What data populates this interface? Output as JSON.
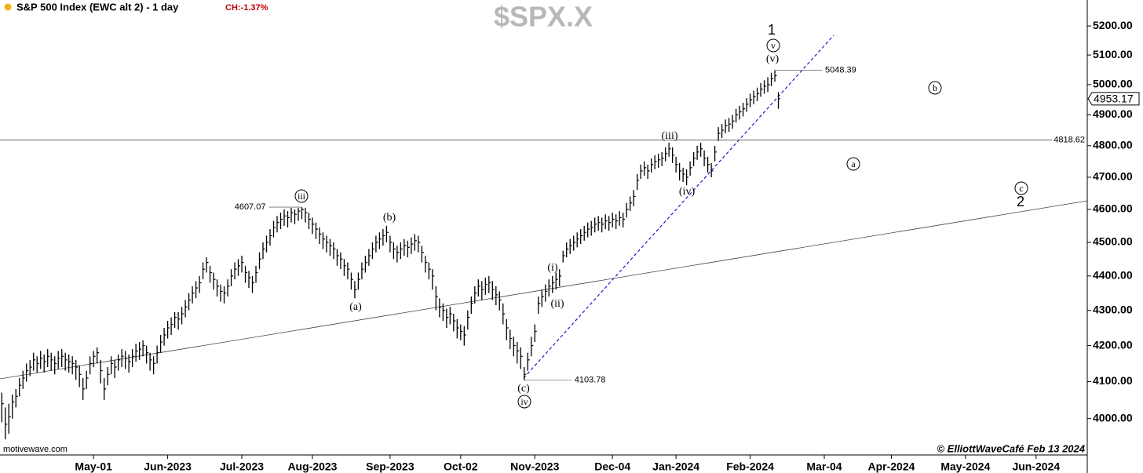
{
  "chart_data": {
    "type": "ohlc",
    "title": "S&P 500 Index (EWC alt 2) - 1 day",
    "change_label": "CH:-1.37%",
    "watermark": "$SPX.X",
    "source": "motivewave.com",
    "credit": "© ElliottWaveCafé Feb 13 2024",
    "ylog": true,
    "ylim": [
      3904,
      5291
    ],
    "yticks": [
      {
        "value": 4000,
        "label": "4000.00"
      },
      {
        "value": 4100,
        "label": "4100.00"
      },
      {
        "value": 4200,
        "label": "4200.00"
      },
      {
        "value": 4300,
        "label": "4300.00"
      },
      {
        "value": 4400,
        "label": "4400.00"
      },
      {
        "value": 4500,
        "label": "4500.00"
      },
      {
        "value": 4600,
        "label": "4600.00"
      },
      {
        "value": 4700,
        "label": "4700.00"
      },
      {
        "value": 4800,
        "label": "4800.00"
      },
      {
        "value": 4900,
        "label": "4900.00"
      },
      {
        "value": 5000,
        "label": "5000.00"
      },
      {
        "value": 5100,
        "label": "5100.00"
      },
      {
        "value": 5200,
        "label": "5200.00"
      }
    ],
    "xlim": [
      -0.5,
      307.5
    ],
    "xticks": [
      {
        "value": 26,
        "label": "May-01"
      },
      {
        "value": 47,
        "label": "Jun-2023"
      },
      {
        "value": 68,
        "label": "Jul-2023"
      },
      {
        "value": 88,
        "label": "Aug-2023"
      },
      {
        "value": 110,
        "label": "Sep-2023"
      },
      {
        "value": 130,
        "label": "Oct-02"
      },
      {
        "value": 151,
        "label": "Nov-2023"
      },
      {
        "value": 173,
        "label": "Dec-04"
      },
      {
        "value": 191,
        "label": "Jan-2024"
      },
      {
        "value": 212,
        "label": "Feb-2024"
      },
      {
        "value": 233,
        "label": "Mar-04"
      },
      {
        "value": 252,
        "label": "Apr-2024"
      },
      {
        "value": 273,
        "label": "May-2024"
      },
      {
        "value": 293,
        "label": "Jun-2024"
      }
    ],
    "color": "#000000",
    "x": [
      0,
      1,
      2,
      3,
      4,
      5,
      6,
      7,
      8,
      9,
      10,
      11,
      12,
      13,
      14,
      15,
      16,
      17,
      18,
      19,
      20,
      21,
      22,
      23,
      24,
      25,
      26,
      27,
      28,
      29,
      30,
      31,
      32,
      33,
      34,
      35,
      36,
      37,
      38,
      39,
      40,
      41,
      42,
      43,
      44,
      45,
      46,
      47,
      48,
      49,
      50,
      51,
      52,
      53,
      54,
      55,
      56,
      57,
      58,
      59,
      60,
      61,
      62,
      63,
      64,
      65,
      66,
      67,
      68,
      69,
      70,
      71,
      72,
      73,
      74,
      75,
      76,
      77,
      78,
      79,
      80,
      81,
      82,
      83,
      84,
      85,
      86,
      87,
      88,
      89,
      90,
      91,
      92,
      93,
      94,
      95,
      96,
      97,
      98,
      99,
      100,
      101,
      102,
      103,
      104,
      105,
      106,
      107,
      108,
      109,
      110,
      111,
      112,
      113,
      114,
      115,
      116,
      117,
      118,
      119,
      120,
      121,
      122,
      123,
      124,
      125,
      126,
      127,
      128,
      129,
      130,
      131,
      132,
      133,
      134,
      135,
      136,
      137,
      138,
      139,
      140,
      141,
      142,
      143,
      144,
      145,
      146,
      147,
      148,
      149,
      150,
      151,
      152,
      153,
      154,
      155,
      156,
      157,
      158,
      159,
      160,
      161,
      162,
      163,
      164,
      165,
      166,
      167,
      168,
      169,
      170,
      171,
      172,
      173,
      174,
      175,
      176,
      177,
      178,
      179,
      180,
      181,
      182,
      183,
      184,
      185,
      186,
      187,
      188,
      189,
      190,
      191,
      192,
      193,
      194,
      195,
      196,
      197,
      198,
      199,
      200,
      201,
      202,
      203,
      204,
      205,
      206,
      207,
      208,
      209,
      210,
      211,
      212,
      213,
      214,
      215,
      216,
      217,
      218,
      219,
      220
    ],
    "high": [
      4070,
      4030,
      4040,
      4065,
      4080,
      4110,
      4130,
      4150,
      4160,
      4180,
      4170,
      4185,
      4175,
      4190,
      4180,
      4170,
      4185,
      4190,
      4180,
      4175,
      4170,
      4160,
      4145,
      4110,
      4130,
      4170,
      4185,
      4195,
      4160,
      4110,
      4140,
      4170,
      4160,
      4175,
      4190,
      4185,
      4175,
      4190,
      4205,
      4210,
      4215,
      4200,
      4180,
      4170,
      4200,
      4230,
      4250,
      4270,
      4280,
      4295,
      4295,
      4310,
      4330,
      4350,
      4370,
      4385,
      4400,
      4440,
      4455,
      4430,
      4410,
      4390,
      4375,
      4370,
      4390,
      4420,
      4440,
      4450,
      4460,
      4430,
      4415,
      4400,
      4430,
      4470,
      4500,
      4520,
      4540,
      4565,
      4580,
      4590,
      4600,
      4595,
      4605,
      4600,
      4605,
      4607.07,
      4605,
      4590,
      4575,
      4560,
      4545,
      4530,
      4520,
      4510,
      4500,
      4480,
      4470,
      4450,
      4440,
      4410,
      4385,
      4410,
      4440,
      4460,
      4480,
      4500,
      4520,
      4530,
      4540,
      4550,
      4520,
      4500,
      4490,
      4500,
      4510,
      4505,
      4515,
      4525,
      4520,
      4490,
      4460,
      4440,
      4420,
      4370,
      4335,
      4320,
      4305,
      4310,
      4290,
      4275,
      4260,
      4255,
      4300,
      4340,
      4370,
      4390,
      4385,
      4395,
      4400,
      4385,
      4370,
      4355,
      4320,
      4275,
      4245,
      4225,
      4210,
      4195,
      4140,
      4180,
      4225,
      4260,
      4340,
      4360,
      4375,
      4390,
      4400,
      4410,
      4420,
      4475,
      4500,
      4510,
      4520,
      4530,
      4540,
      4550,
      4560,
      4565,
      4575,
      4580,
      4575,
      4585,
      4580,
      4590,
      4585,
      4595,
      4590,
      4620,
      4640,
      4660,
      4710,
      4740,
      4750,
      4740,
      4760,
      4770,
      4775,
      4780,
      4795,
      4810,
      4795,
      4765,
      4745,
      4730,
      4725,
      4750,
      4780,
      4800,
      4810,
      4785,
      4765,
      4745,
      4800,
      4860,
      4870,
      4885,
      4890,
      4900,
      4920,
      4930,
      4940,
      4955,
      4970,
      4980,
      4990,
      5005,
      5015,
      5025,
      5040,
      5048.39,
      4975
    ],
    "low": [
      3990,
      3945,
      3960,
      4000,
      4030,
      4060,
      4080,
      4100,
      4115,
      4130,
      4125,
      4135,
      4125,
      4140,
      4130,
      4120,
      4135,
      4140,
      4130,
      4125,
      4120,
      4105,
      4085,
      4050,
      4080,
      4120,
      4140,
      4150,
      4095,
      4050,
      4090,
      4120,
      4110,
      4130,
      4140,
      4135,
      4125,
      4140,
      4155,
      4160,
      4170,
      4150,
      4130,
      4120,
      4150,
      4180,
      4200,
      4220,
      4230,
      4250,
      4245,
      4260,
      4280,
      4300,
      4320,
      4335,
      4350,
      4390,
      4410,
      4380,
      4360,
      4340,
      4325,
      4320,
      4340,
      4370,
      4390,
      4400,
      4410,
      4380,
      4365,
      4350,
      4380,
      4420,
      4450,
      4470,
      4490,
      4515,
      4530,
      4540,
      4550,
      4545,
      4560,
      4555,
      4565,
      4570,
      4560,
      4540,
      4525,
      4510,
      4495,
      4480,
      4470,
      4460,
      4450,
      4430,
      4420,
      4400,
      4390,
      4360,
      4335,
      4360,
      4390,
      4410,
      4430,
      4450,
      4470,
      4480,
      4490,
      4500,
      4470,
      4450,
      4440,
      4450,
      4460,
      4455,
      4465,
      4475,
      4470,
      4440,
      4410,
      4390,
      4360,
      4300,
      4280,
      4270,
      4250,
      4260,
      4240,
      4220,
      4215,
      4200,
      4245,
      4290,
      4320,
      4340,
      4330,
      4345,
      4350,
      4330,
      4315,
      4300,
      4260,
      4215,
      4190,
      4170,
      4150,
      4135,
      4103.78,
      4130,
      4170,
      4210,
      4290,
      4310,
      4325,
      4340,
      4350,
      4360,
      4370,
      4440,
      4455,
      4465,
      4475,
      4485,
      4495,
      4505,
      4515,
      4520,
      4530,
      4535,
      4530,
      4540,
      4535,
      4545,
      4540,
      4550,
      4545,
      4575,
      4595,
      4610,
      4660,
      4695,
      4705,
      4695,
      4715,
      4725,
      4730,
      4735,
      4750,
      4765,
      4745,
      4715,
      4690,
      4685,
      4675,
      4705,
      4735,
      4755,
      4765,
      4735,
      4715,
      4700,
      4750,
      4815,
      4825,
      4840,
      4845,
      4855,
      4875,
      4885,
      4895,
      4910,
      4925,
      4935,
      4945,
      4960,
      4970,
      4975,
      4995,
      5010,
      4920
    ],
    "close": [
      4040,
      3985,
      4005,
      4045,
      4060,
      4090,
      4110,
      4130,
      4140,
      4160,
      4150,
      4165,
      4155,
      4170,
      4160,
      4150,
      4165,
      4170,
      4160,
      4155,
      4150,
      4140,
      4120,
      4080,
      4110,
      4150,
      4170,
      4180,
      4130,
      4080,
      4120,
      4150,
      4140,
      4160,
      4170,
      4165,
      4155,
      4170,
      4185,
      4190,
      4200,
      4180,
      4160,
      4150,
      4180,
      4210,
      4230,
      4250,
      4260,
      4280,
      4275,
      4290,
      4310,
      4330,
      4350,
      4365,
      4380,
      4420,
      4440,
      4410,
      4390,
      4370,
      4355,
      4350,
      4370,
      4400,
      4420,
      4430,
      4440,
      4410,
      4395,
      4380,
      4410,
      4450,
      4480,
      4500,
      4520,
      4545,
      4560,
      4570,
      4580,
      4575,
      4590,
      4585,
      4595,
      4600,
      4590,
      4570,
      4555,
      4540,
      4525,
      4510,
      4500,
      4490,
      4480,
      4460,
      4450,
      4430,
      4420,
      4390,
      4360,
      4390,
      4420,
      4440,
      4460,
      4480,
      4500,
      4510,
      4520,
      4530,
      4500,
      4480,
      4470,
      4480,
      4490,
      4485,
      4495,
      4505,
      4500,
      4470,
      4440,
      4420,
      4400,
      4340,
      4310,
      4300,
      4280,
      4290,
      4270,
      4250,
      4240,
      4230,
      4280,
      4320,
      4350,
      4370,
      4360,
      4375,
      4380,
      4360,
      4345,
      4330,
      4290,
      4250,
      4220,
      4200,
      4185,
      4170,
      4120,
      4160,
      4200,
      4240,
      4320,
      4340,
      4355,
      4370,
      4380,
      4390,
      4400,
      4460,
      4480,
      4490,
      4500,
      4510,
      4520,
      4530,
      4540,
      4545,
      4555,
      4560,
      4555,
      4565,
      4560,
      4570,
      4565,
      4575,
      4570,
      4600,
      4620,
      4640,
      4690,
      4720,
      4730,
      4720,
      4740,
      4750,
      4755,
      4760,
      4775,
      4790,
      4770,
      4740,
      4720,
      4710,
      4700,
      4730,
      4760,
      4780,
      4790,
      4760,
      4740,
      4720,
      4780,
      4840,
      4850,
      4865,
      4870,
      4880,
      4900,
      4910,
      4920,
      4935,
      4950,
      4960,
      4970,
      4985,
      4995,
      5000,
      5020,
      5030,
      4953.17
    ],
    "horizontal_line": 4818.62,
    "wave_labels": [
      "1",
      "v",
      "(v)",
      "(iii)",
      "(iv)",
      "iii",
      "(b)",
      "(a)",
      "(i)",
      "(ii)",
      "(c)",
      "iv",
      "b",
      "a",
      "c",
      "2"
    ]
  }
}
